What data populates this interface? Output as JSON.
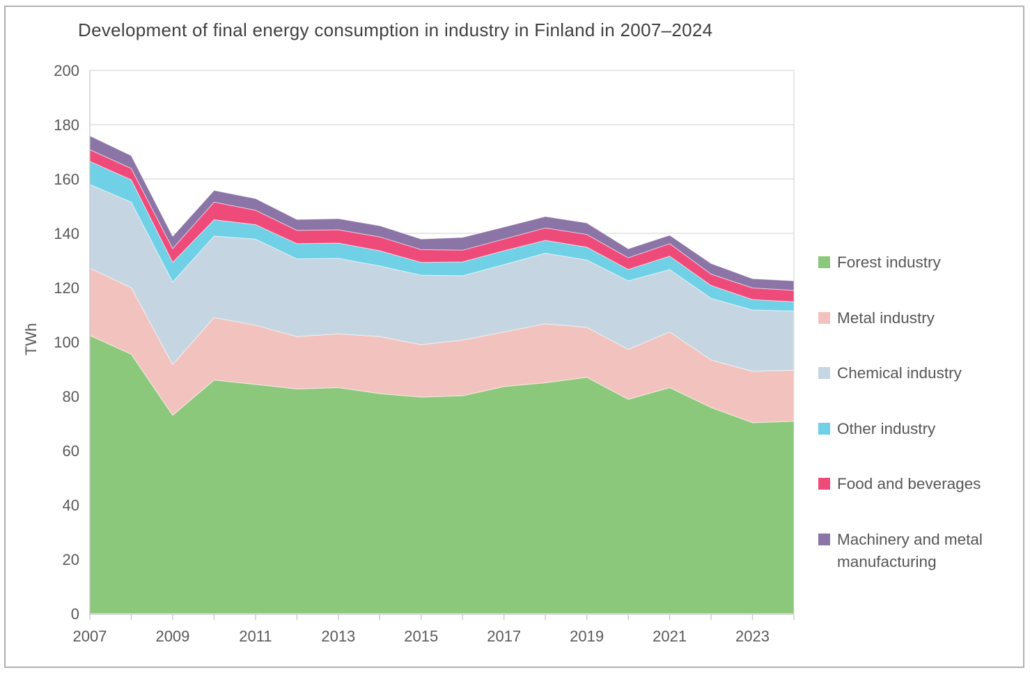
{
  "chart_data": {
    "type": "area",
    "stacked": true,
    "title": "Development of final energy consumption in industry in Finland in 2007–2024",
    "ylabel": "TWh",
    "xlabel": "",
    "grid": "horizontal",
    "legend_position": "right",
    "ylim": [
      0,
      200
    ],
    "ytick_step": 20,
    "y_tick_labels": [
      "0",
      "20",
      "40",
      "60",
      "80",
      "100",
      "120",
      "140",
      "160",
      "180",
      "200"
    ],
    "x_tick_labels": [
      "2007",
      "2009",
      "2011",
      "2013",
      "2015",
      "2017",
      "2019",
      "2021",
      "2023"
    ],
    "categories": [
      2007,
      2008,
      2009,
      2010,
      2011,
      2012,
      2013,
      2014,
      2015,
      2016,
      2017,
      2018,
      2019,
      2020,
      2021,
      2022,
      2023,
      2024
    ],
    "series": [
      {
        "name": "Forest industry",
        "color": "#8cc87b",
        "values": [
          102.4,
          95.5,
          73.0,
          86.0,
          84.4,
          82.7,
          83.2,
          81.0,
          79.7,
          80.2,
          83.6,
          85.0,
          87.0,
          78.9,
          83.2,
          75.9,
          70.3,
          70.8
        ]
      },
      {
        "name": "Metal industry",
        "color": "#f2c3be",
        "values": [
          24.8,
          24.5,
          18.7,
          23.0,
          21.8,
          19.3,
          19.8,
          21.0,
          19.3,
          20.5,
          20.1,
          21.7,
          18.4,
          18.4,
          20.5,
          17.5,
          18.9,
          18.8
        ]
      },
      {
        "name": "Chemical industry",
        "color": "#c5d6e2",
        "values": [
          30.8,
          31.5,
          30.4,
          30.0,
          31.7,
          28.6,
          27.8,
          26.0,
          25.6,
          23.7,
          24.8,
          26.0,
          24.8,
          25.2,
          23.0,
          22.7,
          22.6,
          21.8
        ]
      },
      {
        "name": "Other industry",
        "color": "#6fd0e6",
        "values": [
          8.5,
          8.2,
          7.2,
          6.0,
          5.3,
          5.6,
          5.6,
          5.6,
          4.7,
          5.1,
          5.1,
          4.7,
          4.7,
          4.2,
          4.9,
          4.7,
          3.8,
          3.4
        ]
      },
      {
        "name": "Food and beverages",
        "color": "#ef4b7a",
        "values": [
          4.3,
          4.2,
          5.1,
          6.5,
          5.3,
          4.9,
          4.9,
          5.1,
          4.7,
          4.3,
          4.3,
          4.6,
          4.7,
          4.3,
          4.6,
          4.2,
          4.3,
          4.2
        ]
      },
      {
        "name": "Machinery and metal manufacturing",
        "color": "#8b74a6",
        "values": [
          5.1,
          4.7,
          4.5,
          4.3,
          4.3,
          4.0,
          4.1,
          4.1,
          3.9,
          4.7,
          4.4,
          4.2,
          4.2,
          3.3,
          3.1,
          3.9,
          3.4,
          3.5
        ]
      }
    ]
  },
  "styles": {
    "title_color": "#3f3f3f",
    "text_color": "#595959",
    "grid_color": "#d9d9d9",
    "axis_color": "#c6c6c6",
    "background": "#ffffff",
    "frame_border_color": "#b1b1b1"
  }
}
